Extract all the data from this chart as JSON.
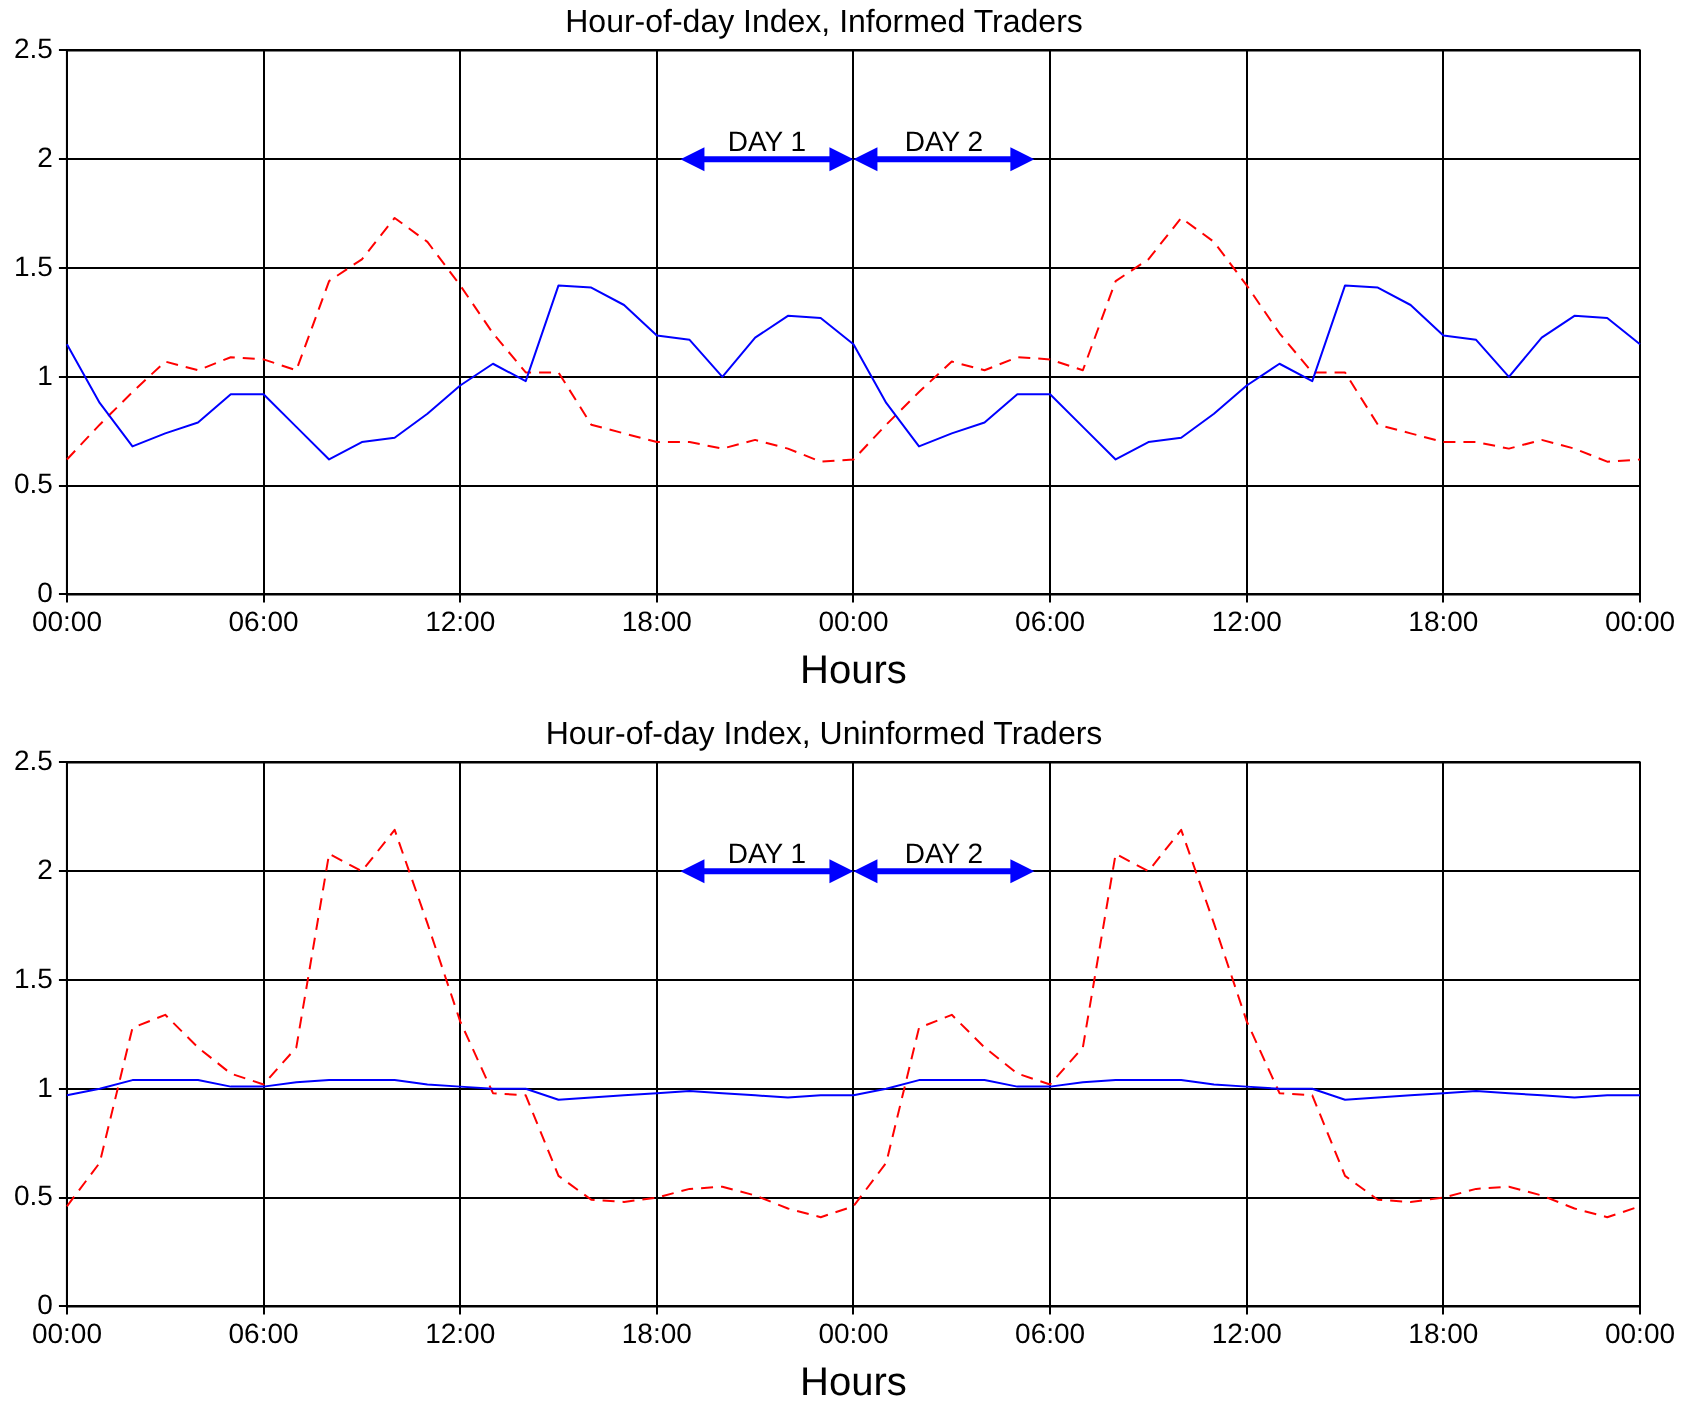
{
  "chart_data": [
    {
      "type": "line",
      "title": "Hour-of-day Index, Informed Traders",
      "xlabel": "Hours",
      "categories": [
        "00:00",
        null,
        null,
        null,
        null,
        null,
        "06:00",
        null,
        null,
        null,
        null,
        null,
        "12:00",
        null,
        null,
        null,
        null,
        null,
        "18:00",
        null,
        null,
        null,
        null,
        null,
        "00:00",
        null,
        null,
        null,
        null,
        null,
        "06:00",
        null,
        null,
        null,
        null,
        null,
        "12:00",
        null,
        null,
        null,
        null,
        null,
        "18:00",
        null,
        null,
        null,
        null,
        null,
        "00:00"
      ],
      "series": [
        {
          "color": "#0000ff",
          "line_style": "solid",
          "values": [
            1.15,
            0.88,
            0.68,
            0.74,
            0.79,
            0.92,
            0.92,
            0.77,
            0.62,
            0.7,
            0.72,
            0.83,
            0.96,
            1.06,
            0.98,
            1.42,
            1.41,
            1.33,
            1.19,
            1.17,
            1.0,
            1.18,
            1.28,
            1.27,
            1.15,
            0.88,
            0.68,
            0.74,
            0.79,
            0.92,
            0.92,
            0.77,
            0.62,
            0.7,
            0.72,
            0.83,
            0.96,
            1.06,
            0.98,
            1.42,
            1.41,
            1.33,
            1.19,
            1.17,
            1.0,
            1.18,
            1.28,
            1.27,
            1.15
          ]
        },
        {
          "color": "#ff0000",
          "line_style": "dashed",
          "values": [
            0.62,
            0.78,
            0.93,
            1.07,
            1.03,
            1.09,
            1.08,
            1.03,
            1.44,
            1.54,
            1.73,
            1.62,
            1.42,
            1.2,
            1.02,
            1.02,
            0.78,
            0.74,
            0.7,
            0.7,
            0.67,
            0.71,
            0.67,
            0.61,
            0.62,
            0.78,
            0.93,
            1.07,
            1.03,
            1.09,
            1.08,
            1.03,
            1.44,
            1.54,
            1.73,
            1.62,
            1.42,
            1.2,
            1.02,
            1.02,
            0.78,
            0.74,
            0.7,
            0.7,
            0.67,
            0.71,
            0.67,
            0.61,
            0.62
          ]
        }
      ],
      "ylim": [
        0,
        2.5
      ],
      "yticks": [
        0,
        0.5,
        1,
        1.5,
        2,
        2.5
      ],
      "grid": true,
      "annotations": [
        "DAY 1",
        "DAY 2"
      ]
    },
    {
      "type": "line",
      "title": "Hour-of-day Index, Uninformed Traders",
      "xlabel": "Hours",
      "categories": [
        "00:00",
        null,
        null,
        null,
        null,
        null,
        "06:00",
        null,
        null,
        null,
        null,
        null,
        "12:00",
        null,
        null,
        null,
        null,
        null,
        "18:00",
        null,
        null,
        null,
        null,
        null,
        "00:00",
        null,
        null,
        null,
        null,
        null,
        "06:00",
        null,
        null,
        null,
        null,
        null,
        "12:00",
        null,
        null,
        null,
        null,
        null,
        "18:00",
        null,
        null,
        null,
        null,
        null,
        "00:00"
      ],
      "series": [
        {
          "color": "#0000ff",
          "line_style": "solid",
          "values": [
            0.97,
            1.0,
            1.04,
            1.04,
            1.04,
            1.01,
            1.01,
            1.03,
            1.04,
            1.04,
            1.04,
            1.02,
            1.01,
            1.0,
            1.0,
            0.95,
            0.96,
            0.97,
            0.98,
            0.99,
            0.98,
            0.97,
            0.96,
            0.97,
            0.97,
            1.0,
            1.04,
            1.04,
            1.04,
            1.01,
            1.01,
            1.03,
            1.04,
            1.04,
            1.04,
            1.02,
            1.01,
            1.0,
            1.0,
            0.95,
            0.96,
            0.97,
            0.98,
            0.99,
            0.98,
            0.97,
            0.96,
            0.97,
            0.97
          ]
        },
        {
          "color": "#ff0000",
          "line_style": "dashed",
          "values": [
            0.46,
            0.66,
            1.28,
            1.34,
            1.19,
            1.07,
            1.02,
            1.19,
            2.08,
            2.0,
            2.19,
            1.76,
            1.31,
            0.98,
            0.97,
            0.6,
            0.49,
            0.48,
            0.5,
            0.54,
            0.55,
            0.51,
            0.45,
            0.41,
            0.46,
            0.66,
            1.28,
            1.34,
            1.19,
            1.07,
            1.02,
            1.19,
            2.08,
            2.0,
            2.19,
            1.76,
            1.31,
            0.98,
            0.97,
            0.6,
            0.49,
            0.48,
            0.5,
            0.54,
            0.55,
            0.51,
            0.45,
            0.41,
            0.46
          ]
        }
      ],
      "ylim": [
        0,
        2.5
      ],
      "yticks": [
        0,
        0.5,
        1,
        1.5,
        2,
        2.5
      ],
      "grid": true,
      "annotations": [
        "DAY 1",
        "DAY 2"
      ]
    }
  ]
}
